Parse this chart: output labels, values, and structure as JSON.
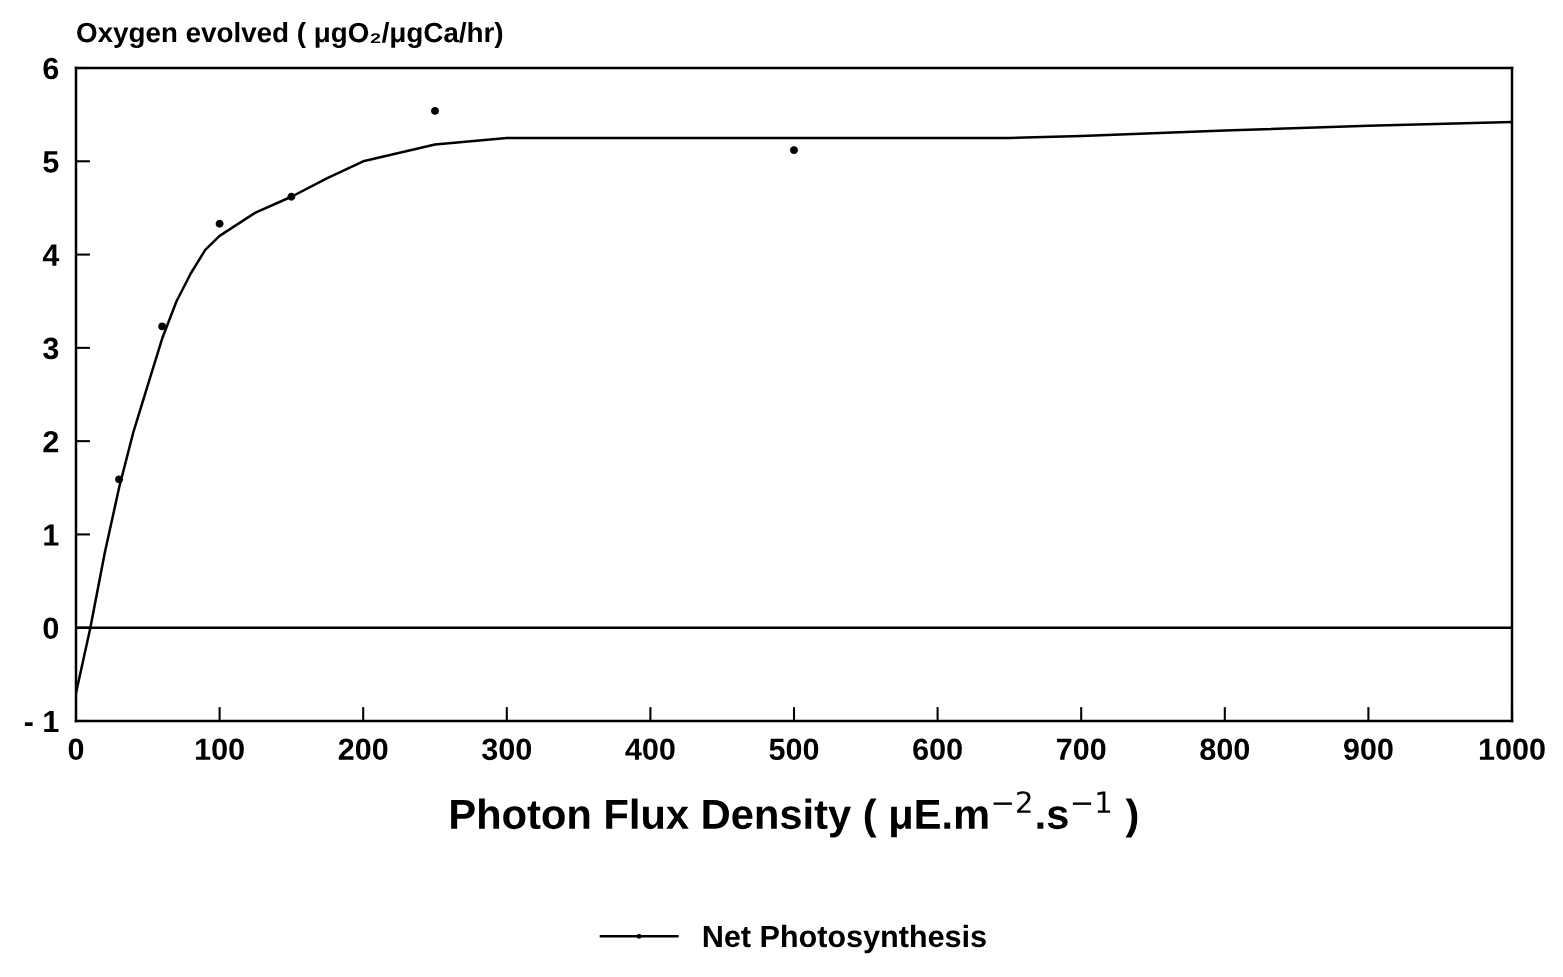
{
  "chart_data": {
    "type": "line",
    "ylabel": "Oxygen evolved ( μgO₂/μgCa/hr)",
    "xlabel": "Photon Flux Density ( μE.m$^{−2}$.s$^{−1}$ )",
    "series": [
      {
        "type": "scatter",
        "color": "#000000",
        "marker": "circle",
        "x": [
          30,
          60,
          100,
          150,
          250,
          500
        ],
        "values": [
          1.59,
          3.23,
          4.33,
          4.62,
          5.54,
          5.12
        ]
      },
      {
        "name": "Net Photosynthesis",
        "color": "#000000",
        "marker": "none",
        "line_style": "solid",
        "x": [
          0,
          10,
          20,
          30,
          40,
          50,
          60,
          70,
          80,
          90,
          100,
          125,
          150,
          175,
          200,
          250,
          300,
          400,
          500,
          650,
          700,
          800,
          900,
          1000
        ],
        "values": [
          -0.7,
          0.0,
          0.8,
          1.5,
          2.1,
          2.6,
          3.1,
          3.5,
          3.8,
          4.05,
          4.2,
          4.45,
          4.62,
          4.82,
          5.0,
          5.18,
          5.25,
          5.25,
          5.25,
          5.25,
          5.27,
          5.33,
          5.38,
          5.42
        ]
      }
    ],
    "xlim": [
      0,
      1000
    ],
    "xticks": [
      0,
      100,
      200,
      300,
      400,
      500,
      600,
      700,
      800,
      900,
      1000
    ],
    "ylim": [
      -1,
      6
    ],
    "yticks": [
      {
        "value": -1,
        "label": "- 1"
      },
      0,
      1,
      2,
      3,
      4,
      5,
      6
    ],
    "ref_lines": [
      {
        "axis": "y",
        "value": 0,
        "color": "#000000",
        "line_style": "solid"
      }
    ],
    "grid": false,
    "legend": "bottom"
  }
}
